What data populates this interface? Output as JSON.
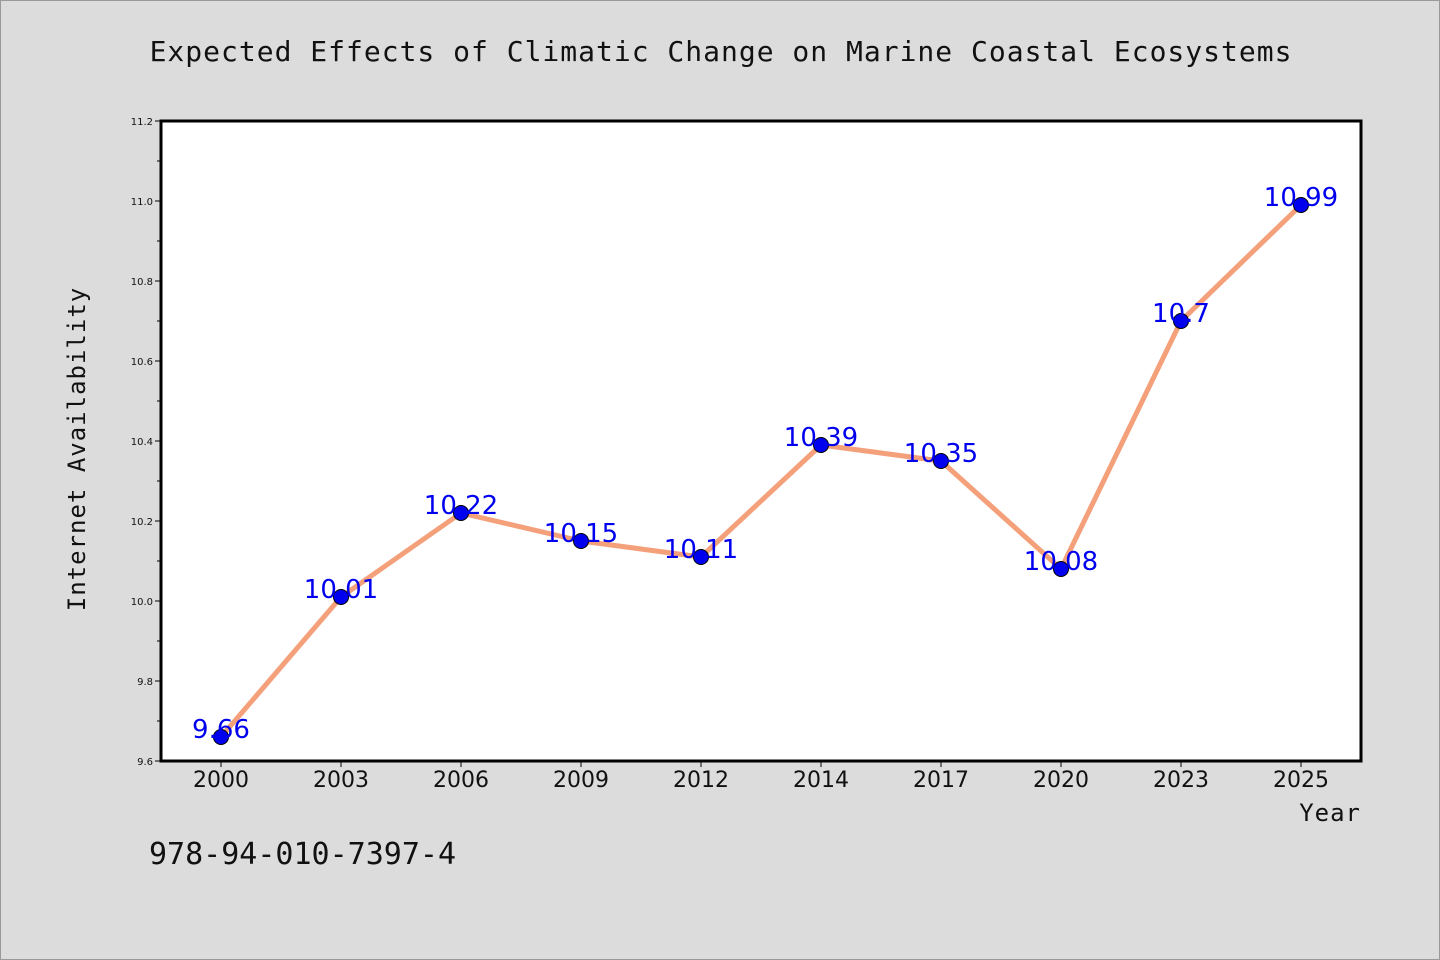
{
  "chart_data": {
    "type": "line",
    "title": "Expected Effects of Climatic Change on Marine Coastal Ecosystems",
    "xlabel": "Year",
    "ylabel": "Internet Availability",
    "categories": [
      "2000",
      "2003",
      "2006",
      "2009",
      "2012",
      "2014",
      "2017",
      "2020",
      "2023",
      "2025"
    ],
    "series": [
      {
        "values": [
          9.66,
          10.01,
          10.22,
          10.15,
          10.11,
          10.39,
          10.35,
          10.08,
          10.7,
          10.99
        ],
        "labels": [
          "9.66",
          "10.01",
          "10.22",
          "10.15",
          "10.11",
          "10.39",
          "10.35",
          "10.08",
          "10.7",
          "10.99"
        ],
        "line_color": "#f4a07a",
        "marker_color": "#0000ee"
      }
    ],
    "ylim": [
      9.6,
      11.2
    ],
    "yticks": [
      "9.6",
      "9.8",
      "10.0",
      "10.2",
      "10.4",
      "10.6",
      "10.8",
      "11.0",
      "11.2"
    ],
    "grid": false,
    "legend": "none"
  },
  "footer": {
    "code": "978-94-010-7397-4"
  }
}
